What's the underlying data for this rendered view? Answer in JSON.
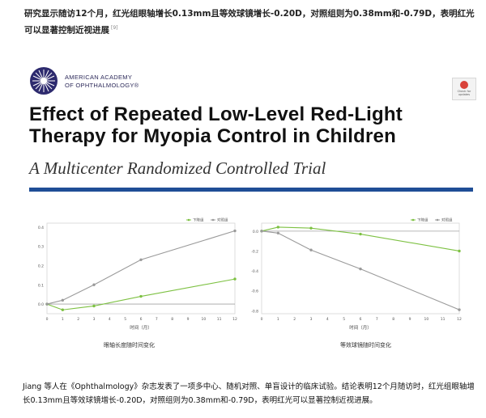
{
  "intro_text": "研究显示随访12个月，红光组眼轴增长0.13mm且等效球镜增长-0.20D，对照组则为0.38mm和-0.79D，表明红光可以显著控制近视进展",
  "intro_ref": "[9]",
  "journal": {
    "org_line1": "AMERICAN ACADEMY",
    "org_line2": "OF OPHTHALMOLOGY®",
    "badge_text": "Check for updates"
  },
  "paper_title": "Effect of Repeated Low-Level Red-Light Therapy for Myopia Control in Children",
  "paper_subtitle": "A Multicenter Randomized Controlled Trial",
  "colors": {
    "rlrl": "#7dc142",
    "control": "#9a9a9a",
    "rule": "#1f4e96"
  },
  "chart_data": [
    {
      "type": "line",
      "caption": "眼轴长度随时间变化",
      "xlabel": "时间（月）",
      "x": [
        0,
        1,
        3,
        6,
        12
      ],
      "x_ticks": [
        "0",
        "1",
        "2",
        "3",
        "4",
        "5",
        "6",
        "7",
        "8",
        "9",
        "10",
        "11",
        "12"
      ],
      "y_ticks": [
        "0.0",
        "0.1",
        "0.2",
        "0.3",
        "0.4"
      ],
      "ylim": [
        -0.05,
        0.42
      ],
      "legend": [
        "下降组",
        "对照组"
      ],
      "series": [
        {
          "name": "下降组",
          "values": [
            0.0,
            -0.03,
            -0.01,
            0.04,
            0.13
          ]
        },
        {
          "name": "对照组",
          "values": [
            0.0,
            0.02,
            0.1,
            0.23,
            0.38
          ]
        }
      ]
    },
    {
      "type": "line",
      "caption": "等效球镜随时间变化",
      "xlabel": "时间（月）",
      "x": [
        0,
        1,
        3,
        6,
        12
      ],
      "x_ticks": [
        "0",
        "1",
        "2",
        "3",
        "4",
        "5",
        "6",
        "7",
        "8",
        "9",
        "10",
        "11",
        "12"
      ],
      "y_ticks": [
        "0.0",
        "-0.2",
        "-0.4",
        "-0.6",
        "-0.8"
      ],
      "ylim": [
        -0.83,
        0.08
      ],
      "legend": [
        "下降组",
        "对照组"
      ],
      "series": [
        {
          "name": "下降组",
          "values": [
            0.0,
            0.04,
            0.03,
            -0.03,
            -0.2
          ]
        },
        {
          "name": "对照组",
          "values": [
            0.0,
            -0.02,
            -0.19,
            -0.38,
            -0.79
          ]
        }
      ]
    }
  ],
  "bottom_text": "Jiang 等人在《Ophthalmology》杂志发表了一项多中心、随机对照、单盲设计的临床试验。结论表明12个月随访时，红光组眼轴增长0.13mm且等效球镜增长-0.20D，对照组则为0.38mm和-0.79D，表明红光可以显著控制近视进展。"
}
